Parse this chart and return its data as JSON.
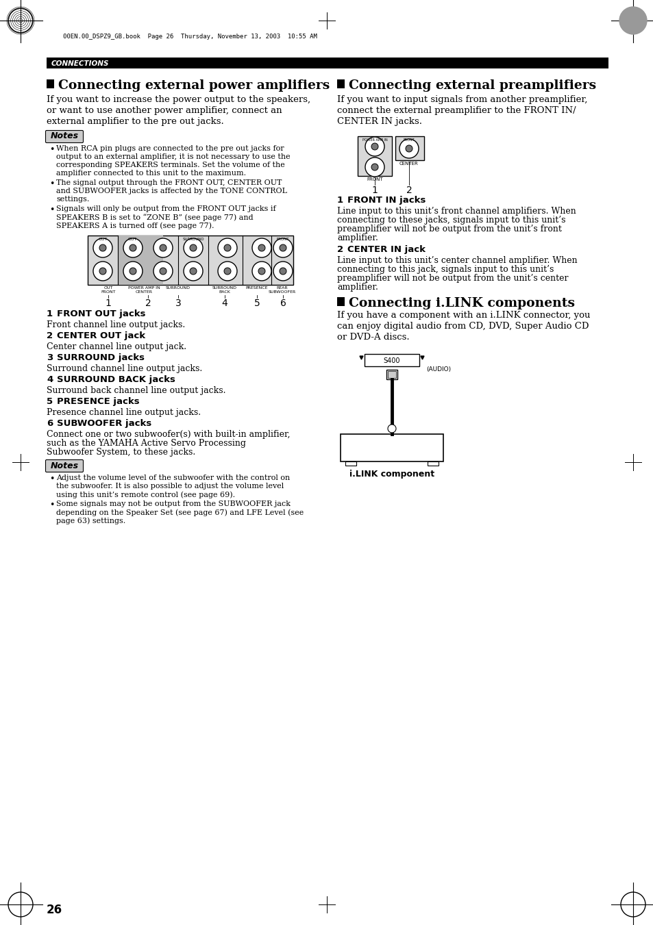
{
  "page_num": "26",
  "header_file": "00EN.00_DSPZ9_GB.book  Page 26  Thursday, November 13, 2003  10:55 AM",
  "section_header": "CONNECTIONS",
  "bg_color": "#ffffff",
  "left_col": {
    "title": "Connecting external power amplifiers",
    "intro_lines": [
      "If you want to increase the power output to the speakers,",
      "or want to use another power amplifier, connect an",
      "external amplifier to the pre out jacks."
    ],
    "notes_title": "Notes",
    "note1_lines": [
      "When RCA pin plugs are connected to the pre out jacks for",
      "output to an external amplifier, it is not necessary to use the",
      "corresponding SPEAKERS terminals. Set the volume of the",
      "amplifier connected to this unit to the maximum."
    ],
    "note2_lines": [
      "The signal output through the FRONT OUT, CENTER OUT",
      "and SUBWOOFER jacks is affected by the TONE CONTROL",
      "settings."
    ],
    "note3_lines": [
      "Signals will only be output from the FRONT OUT jacks if",
      "SPEAKERS B is set to “ZONE B” (see page 77) and",
      "SPEAKERS A is turned off (see page 77)."
    ],
    "items": [
      {
        "num": "1",
        "title": "FRONT OUT jacks",
        "desc_lines": [
          "Front channel line output jacks."
        ]
      },
      {
        "num": "2",
        "title": "CENTER OUT jack",
        "desc_lines": [
          "Center channel line output jack."
        ]
      },
      {
        "num": "3",
        "title": "SURROUND jacks",
        "desc_lines": [
          "Surround channel line output jacks."
        ]
      },
      {
        "num": "4",
        "title": "SURROUND BACK jacks",
        "desc_lines": [
          "Surround back channel line output jacks."
        ]
      },
      {
        "num": "5",
        "title": "PRESENCE jacks",
        "desc_lines": [
          "Presence channel line output jacks."
        ]
      },
      {
        "num": "6",
        "title": "SUBWOOFER jacks",
        "desc_lines": [
          "Connect one or two subwoofer(s) with built-in amplifier,",
          "such as the YAMAHA Active Servo Processing",
          "Subwoofer System, to these jacks."
        ]
      }
    ],
    "notes2_title": "Notes",
    "note4_lines": [
      "Adjust the volume level of the subwoofer with the control on",
      "the subwoofer. It is also possible to adjust the volume level",
      "using this unit’s remote control (see page 69)."
    ],
    "note5_lines": [
      "Some signals may not be output from the SUBWOOFER jack",
      "depending on the Speaker Set (see page 67) and LFE Level (see",
      "page 63) settings."
    ]
  },
  "right_col": {
    "title": "Connecting external preamplifiers",
    "intro_lines": [
      "If you want to input signals from another preamplifier,",
      "connect the external preamplifier to the FRONT IN/",
      "CENTER IN jacks."
    ],
    "items": [
      {
        "num": "1",
        "title": "FRONT IN jacks",
        "desc_lines": [
          "Line input to this unit’s front channel amplifiers. When",
          "connecting to these jacks, signals input to this unit’s",
          "preamplifier will not be output from the unit’s front",
          "amplifier."
        ]
      },
      {
        "num": "2",
        "title": "CENTER IN jack",
        "desc_lines": [
          "Line input to this unit’s center channel amplifier. When",
          "connecting to this jack, signals input to this unit’s",
          "preamplifier will not be output from the unit’s center",
          "amplifier."
        ]
      }
    ],
    "title2": "Connecting i.LINK components",
    "intro2_lines": [
      "If you have a component with an i.LINK connector, you",
      "can enjoy digital audio from CD, DVD, Super Audio CD",
      "or DVD-A discs."
    ],
    "ilink_label": "i.LINK component"
  }
}
